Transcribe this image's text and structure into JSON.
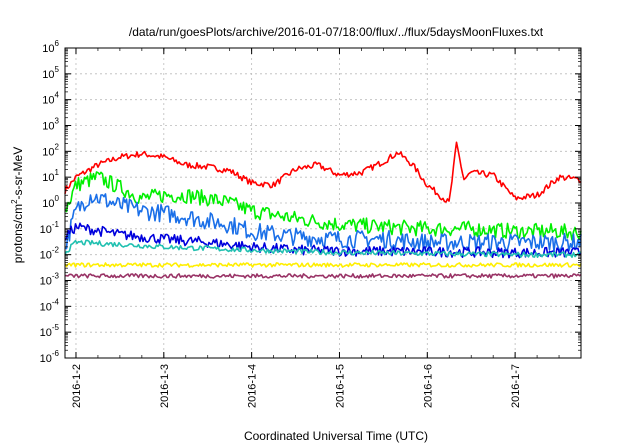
{
  "chart_data": {
    "type": "line",
    "title": "/data/run/goesPlots/archive/2016-01-07/18:00/flux/../flux/5daysMoonFluxes.txt",
    "xlabel": "Coordinated Universal Time (UTC)",
    "ylabel": "protons/cm²-s-sr-MeV",
    "xlim": [
      "2016-01-01T21:00",
      "2016-01-07T18:00"
    ],
    "ylim": [
      1e-06,
      1000000.0
    ],
    "yscale": "log",
    "grid": true,
    "x_ticks": [
      "2016-1-2",
      "2016-1-3",
      "2016-1-4",
      "2016-1-5",
      "2016-1-6",
      "2016-1-7"
    ],
    "y_ticks": [
      {
        "base": "10",
        "exp": "-6",
        "value": 1e-06
      },
      {
        "base": "10",
        "exp": "-5",
        "value": 1e-05
      },
      {
        "base": "10",
        "exp": "-4",
        "value": 0.0001
      },
      {
        "base": "10",
        "exp": "-3",
        "value": 0.001
      },
      {
        "base": "10",
        "exp": "-2",
        "value": 0.01
      },
      {
        "base": "10",
        "exp": "-1",
        "value": 0.1
      },
      {
        "base": "10",
        "exp": "0",
        "value": 1
      },
      {
        "base": "10",
        "exp": "1",
        "value": 10
      },
      {
        "base": "10",
        "exp": "2",
        "value": 100
      },
      {
        "base": "10",
        "exp": "3",
        "value": 1000
      },
      {
        "base": "10",
        "exp": "4",
        "value": 10000
      },
      {
        "base": "10",
        "exp": "5",
        "value": 100000
      },
      {
        "base": "10",
        "exp": "6",
        "value": 1000000
      }
    ],
    "series": [
      {
        "color": "#ff0000",
        "noise": 0.12,
        "x": [
          "2016-01-01T21:00",
          "2016-01-02T00:00",
          "2016-01-02T06:00",
          "2016-01-02T12:00",
          "2016-01-02T18:00",
          "2016-01-03T00:00",
          "2016-01-03T06:00",
          "2016-01-03T12:00",
          "2016-01-03T18:00",
          "2016-01-04T00:00",
          "2016-01-04T06:00",
          "2016-01-04T12:00",
          "2016-01-04T18:00",
          "2016-01-05T00:00",
          "2016-01-05T06:00",
          "2016-01-05T12:00",
          "2016-01-05T16:00",
          "2016-01-05T20:00",
          "2016-01-06T00:00",
          "2016-01-06T06:00",
          "2016-01-06T08:00",
          "2016-01-06T10:00",
          "2016-01-06T12:00",
          "2016-01-06T18:00",
          "2016-01-07T00:00",
          "2016-01-07T06:00",
          "2016-01-07T12:00",
          "2016-01-07T18:00"
        ],
        "values": [
          3,
          10,
          30,
          60,
          80,
          60,
          30,
          25,
          18,
          6,
          5,
          20,
          30,
          12,
          15,
          40,
          90,
          30,
          5,
          1,
          200,
          8,
          15,
          12,
          1.5,
          2,
          10,
          8
        ]
      },
      {
        "color": "#00ee00",
        "noise": 0.3,
        "x": [
          "2016-01-01T21:00",
          "2016-01-02T00:00",
          "2016-01-02T06:00",
          "2016-01-02T12:00",
          "2016-01-02T18:00",
          "2016-01-03T00:00",
          "2016-01-03T06:00",
          "2016-01-03T12:00",
          "2016-01-03T18:00",
          "2016-01-04T00:00",
          "2016-01-04T12:00",
          "2016-01-05T00:00",
          "2016-01-05T12:00",
          "2016-01-06T00:00",
          "2016-01-06T12:00",
          "2016-01-07T00:00",
          "2016-01-07T12:00",
          "2016-01-07T18:00"
        ],
        "values": [
          0.5,
          5,
          10,
          4,
          1.5,
          2,
          2,
          1.5,
          1,
          0.5,
          0.25,
          0.15,
          0.12,
          0.1,
          0.1,
          0.08,
          0.08,
          0.07
        ]
      },
      {
        "color": "#1a6fe8",
        "noise": 0.35,
        "x": [
          "2016-01-01T21:00",
          "2016-01-02T00:00",
          "2016-01-02T04:00",
          "2016-01-02T12:00",
          "2016-01-02T18:00",
          "2016-01-03T00:00",
          "2016-01-03T06:00",
          "2016-01-03T12:00",
          "2016-01-03T18:00",
          "2016-01-04T00:00",
          "2016-01-04T12:00",
          "2016-01-05T00:00",
          "2016-01-05T12:00",
          "2016-01-06T00:00",
          "2016-01-06T12:00",
          "2016-01-07T00:00",
          "2016-01-07T12:00",
          "2016-01-07T18:00"
        ],
        "values": [
          0.02,
          0.5,
          2,
          0.8,
          0.5,
          0.4,
          0.3,
          0.2,
          0.15,
          0.08,
          0.05,
          0.04,
          0.04,
          0.03,
          0.03,
          0.03,
          0.03,
          0.03
        ]
      },
      {
        "color": "#0000dd",
        "noise": 0.2,
        "x": [
          "2016-01-01T21:00",
          "2016-01-02T00:00",
          "2016-01-02T12:00",
          "2016-01-03T00:00",
          "2016-01-03T12:00",
          "2016-01-04T00:00",
          "2016-01-04T12:00",
          "2016-01-05T00:00",
          "2016-01-06T00:00",
          "2016-01-07T00:00",
          "2016-01-07T18:00"
        ],
        "values": [
          0.05,
          0.12,
          0.06,
          0.04,
          0.03,
          0.02,
          0.015,
          0.014,
          0.013,
          0.012,
          0.012
        ]
      },
      {
        "color": "#20c0b0",
        "noise": 0.1,
        "x": [
          "2016-01-01T21:00",
          "2016-01-02T00:00",
          "2016-01-02T12:00",
          "2016-01-03T00:00",
          "2016-01-04T00:00",
          "2016-01-05T00:00",
          "2016-01-06T00:00",
          "2016-01-07T00:00",
          "2016-01-07T18:00"
        ],
        "values": [
          0.012,
          0.03,
          0.025,
          0.02,
          0.015,
          0.012,
          0.011,
          0.01,
          0.01
        ]
      },
      {
        "color": "#ffee00",
        "noise": 0.08,
        "x": [
          "2016-01-01T21:00",
          "2016-01-03T00:00",
          "2016-01-05T00:00",
          "2016-01-07T18:00"
        ],
        "values": [
          0.004,
          0.004,
          0.004,
          0.004
        ]
      },
      {
        "color": "#993366",
        "noise": 0.08,
        "x": [
          "2016-01-01T21:00",
          "2016-01-03T00:00",
          "2016-01-05T00:00",
          "2016-01-07T18:00"
        ],
        "values": [
          0.0015,
          0.0015,
          0.0015,
          0.0015
        ]
      }
    ]
  }
}
